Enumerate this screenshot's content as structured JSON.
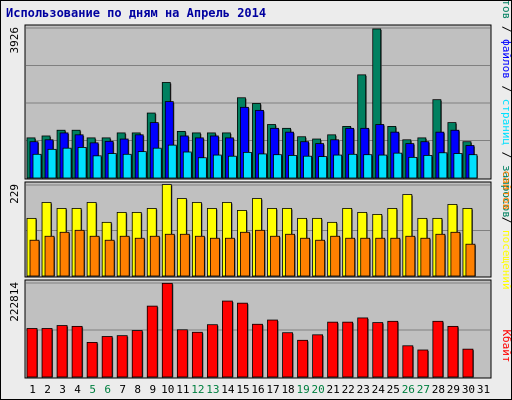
{
  "title": "Использование по дням на Апрель 2014",
  "colors": {
    "background": "#ececec",
    "plot": "#c0c0c0",
    "title": "#0000a0",
    "hits": "#008060",
    "files": "#0000ff",
    "pages": "#00e0ff",
    "visits": "#ffff00",
    "sites": "#ff8000",
    "kbytes": "#ff0000",
    "weekday_label": "#000000",
    "weekend_label": "#008040"
  },
  "chart_data": [
    {
      "type": "bar",
      "name": "top",
      "ymax_label": "3926",
      "ymax": 3926,
      "series": [
        {
          "key": "hits",
          "color": "#008060",
          "values": [
            1050,
            1100,
            1250,
            1250,
            1050,
            1050,
            1180,
            1180,
            1700,
            2500,
            1220,
            1180,
            1180,
            1180,
            2100,
            1950,
            1400,
            1300,
            1080,
            1020,
            1130,
            1350,
            2700,
            3900,
            1350,
            1000,
            1050,
            2050,
            1450,
            950,
            0
          ]
        },
        {
          "key": "files",
          "color": "#0000ff",
          "values": [
            950,
            1000,
            1180,
            1130,
            920,
            960,
            1020,
            1130,
            1450,
            2000,
            1100,
            1050,
            1100,
            1050,
            1850,
            1770,
            1300,
            1200,
            950,
            900,
            1000,
            1300,
            1300,
            1400,
            1200,
            900,
            950,
            1200,
            1250,
            850,
            0
          ]
        },
        {
          "key": "pages",
          "color": "#00e0ff",
          "values": [
            620,
            750,
            780,
            800,
            580,
            640,
            620,
            690,
            780,
            860,
            680,
            530,
            600,
            570,
            670,
            630,
            610,
            590,
            570,
            560,
            600,
            620,
            610,
            600,
            650,
            540,
            590,
            660,
            640,
            610,
            0
          ]
        }
      ]
    },
    {
      "type": "bar",
      "name": "middle",
      "ymax_label": "229",
      "ymax": 229,
      "series": [
        {
          "key": "visits",
          "color": "#ffff00",
          "values": [
            145,
            185,
            170,
            170,
            185,
            135,
            160,
            160,
            170,
            230,
            195,
            185,
            170,
            185,
            165,
            195,
            170,
            170,
            145,
            145,
            135,
            170,
            160,
            155,
            170,
            205,
            145,
            145,
            180,
            170,
            0
          ]
        },
        {
          "key": "sites",
          "color": "#ff8000",
          "values": [
            90,
            100,
            110,
            115,
            100,
            90,
            100,
            95,
            100,
            105,
            105,
            100,
            95,
            95,
            110,
            115,
            100,
            105,
            95,
            90,
            100,
            95,
            95,
            95,
            95,
            100,
            95,
            105,
            110,
            80,
            0
          ]
        }
      ]
    },
    {
      "type": "bar",
      "name": "bottom",
      "ymax_label": "222814",
      "ymax": 222814,
      "series": [
        {
          "key": "kbytes",
          "color": "#ff0000",
          "values": [
            115000,
            115000,
            122000,
            120000,
            82000,
            96000,
            98000,
            110000,
            168000,
            222000,
            112000,
            106000,
            124000,
            180000,
            175000,
            125000,
            135000,
            105000,
            87000,
            100000,
            130000,
            130000,
            140000,
            129000,
            132000,
            74000,
            64000,
            132000,
            120000,
            66000,
            0
          ]
        }
      ]
    }
  ],
  "x_labels": [
    "1",
    "2",
    "3",
    "4",
    "5",
    "6",
    "7",
    "8",
    "9",
    "10",
    "11",
    "12",
    "13",
    "14",
    "15",
    "16",
    "17",
    "18",
    "19",
    "20",
    "21",
    "22",
    "23",
    "24",
    "25",
    "26",
    "27",
    "28",
    "29",
    "30",
    "31"
  ],
  "weekend_days": [
    "5",
    "6",
    "12",
    "13",
    "19",
    "20",
    "26",
    "27"
  ],
  "right_labels": {
    "top": [
      {
        "text": "хитов",
        "color": "#008060"
      },
      {
        "text": " / ",
        "color": "#000000"
      },
      {
        "text": "файлов",
        "color": "#0000ff"
      },
      {
        "text": " / ",
        "color": "#000000"
      },
      {
        "text": "страниц",
        "color": "#00e0ff"
      },
      {
        "text": " / ",
        "color": "#000000"
      },
      {
        "text": "запросов",
        "color": "#008060"
      }
    ],
    "middle": [
      {
        "text": "сайтов",
        "color": "#ff8000"
      },
      {
        "text": " / ",
        "color": "#000000"
      },
      {
        "text": "посещений",
        "color": "#ffff00"
      }
    ],
    "bottom": [
      {
        "text": "Кбайт",
        "color": "#ff0000"
      }
    ]
  }
}
